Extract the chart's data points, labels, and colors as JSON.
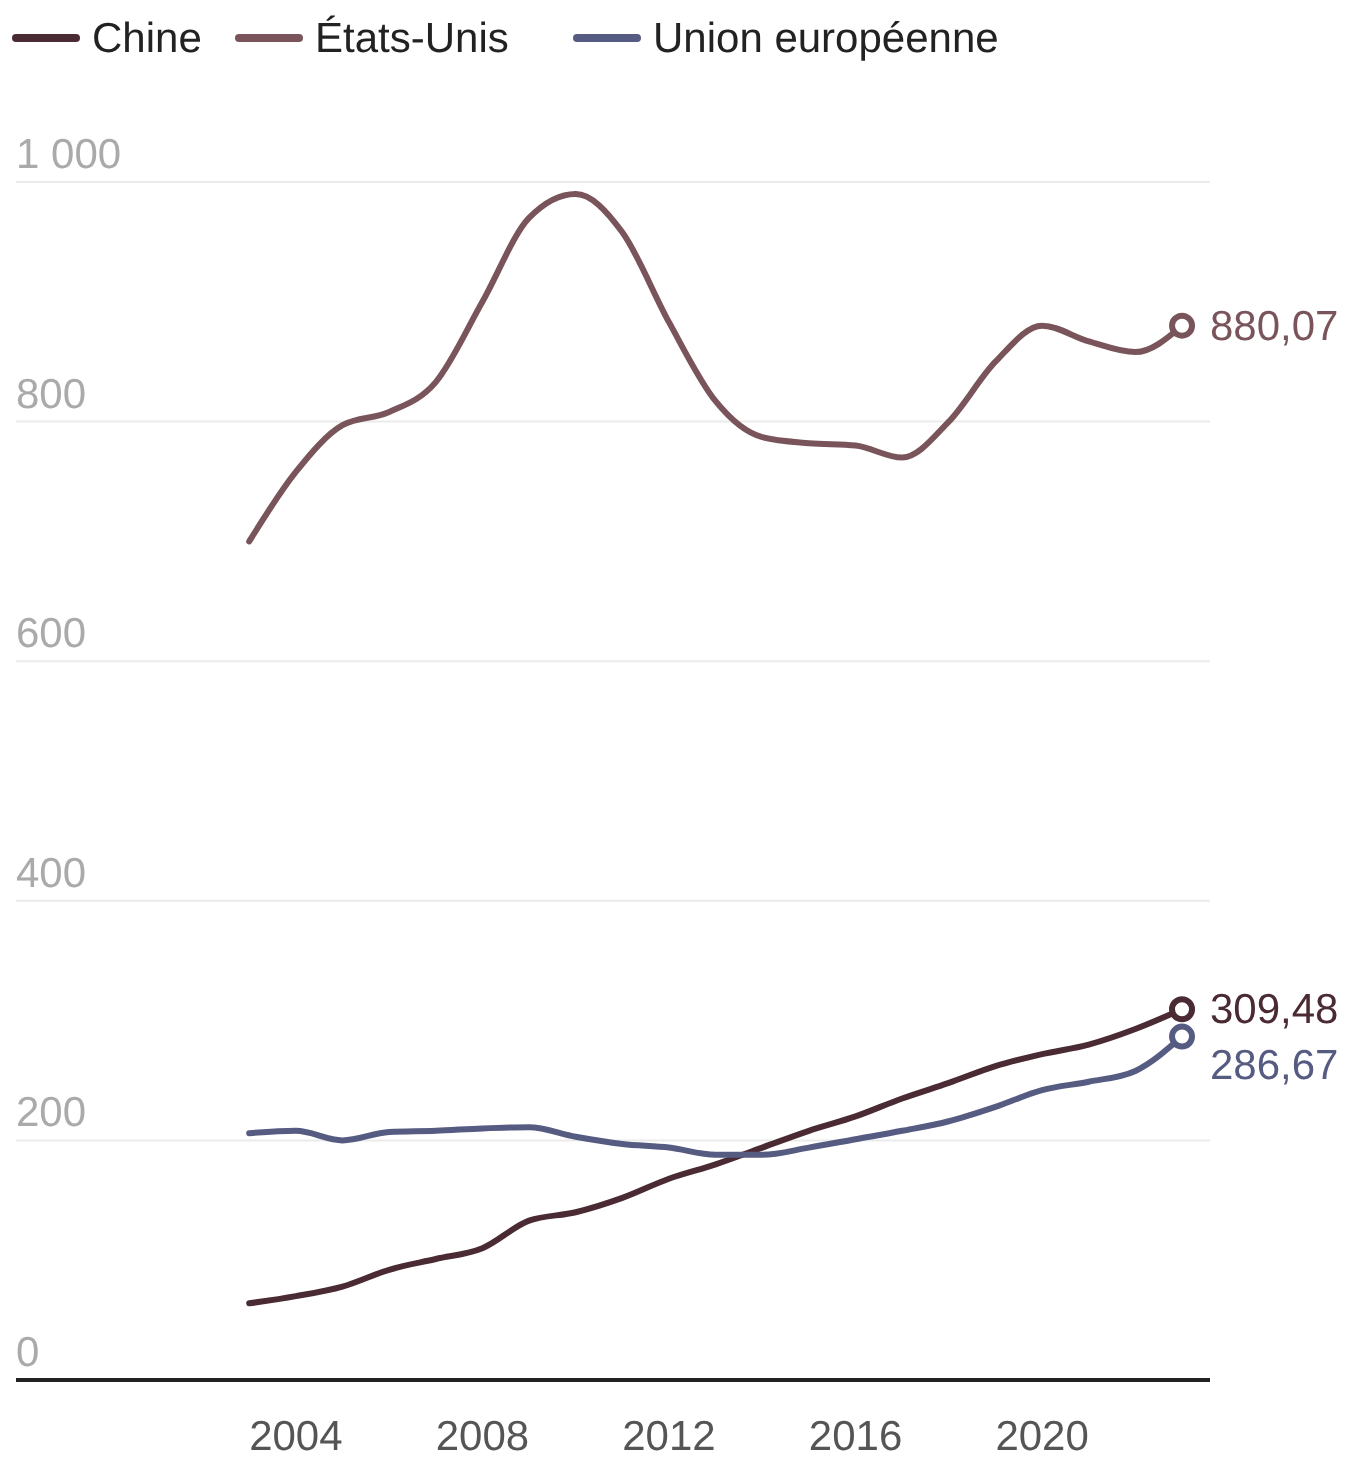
{
  "chart_data": {
    "type": "line",
    "x": [
      2003,
      2004,
      2005,
      2006,
      2007,
      2008,
      2009,
      2010,
      2011,
      2012,
      2013,
      2014,
      2015,
      2016,
      2017,
      2018,
      2019,
      2020,
      2021,
      2022,
      2023
    ],
    "series": [
      {
        "name": "Chine",
        "color": "#4b2b33",
        "values": [
          64,
          70,
          78,
          92,
          101,
          110,
          133,
          140,
          152,
          168,
          180,
          194,
          208,
          220,
          235,
          248,
          262,
          272,
          280,
          293,
          309.48
        ],
        "value_labels": [
          null,
          null,
          null,
          null,
          null,
          null,
          null,
          null,
          null,
          null,
          null,
          null,
          null,
          null,
          null,
          null,
          null,
          null,
          null,
          null,
          "309,48"
        ]
      },
      {
        "name": "États-Unis",
        "color": "#7a545b",
        "values": [
          700,
          758,
          797,
          808,
          833,
          900,
          970,
          990,
          958,
          883,
          817,
          787,
          782,
          780,
          770,
          800,
          850,
          880,
          867,
          858,
          880.07
        ],
        "value_labels": [
          null,
          null,
          null,
          null,
          null,
          null,
          null,
          null,
          null,
          null,
          null,
          null,
          null,
          null,
          null,
          null,
          null,
          null,
          null,
          null,
          "880,07"
        ]
      },
      {
        "name": "Union européenne",
        "color": "#565b82",
        "values": [
          206,
          208,
          200,
          207,
          208,
          210,
          211,
          203,
          197,
          194,
          188,
          188,
          194,
          201,
          208,
          216,
          228,
          242,
          249,
          258,
          286.67
        ],
        "value_labels": [
          null,
          null,
          null,
          null,
          null,
          null,
          null,
          null,
          null,
          null,
          null,
          null,
          null,
          null,
          null,
          null,
          null,
          null,
          null,
          null,
          "286,67"
        ]
      }
    ],
    "xlim": [
      1998,
      2023.6
    ],
    "xticks": [
      2004,
      2008,
      2012,
      2016,
      2020
    ],
    "ylim": [
      0,
      1000
    ],
    "yticks": [
      0,
      200,
      400,
      600,
      800,
      {
        "value": 1000,
        "label": "1 000"
      }
    ],
    "grid": "y",
    "legend": "top left",
    "marker": "none",
    "line_style": "solid"
  }
}
